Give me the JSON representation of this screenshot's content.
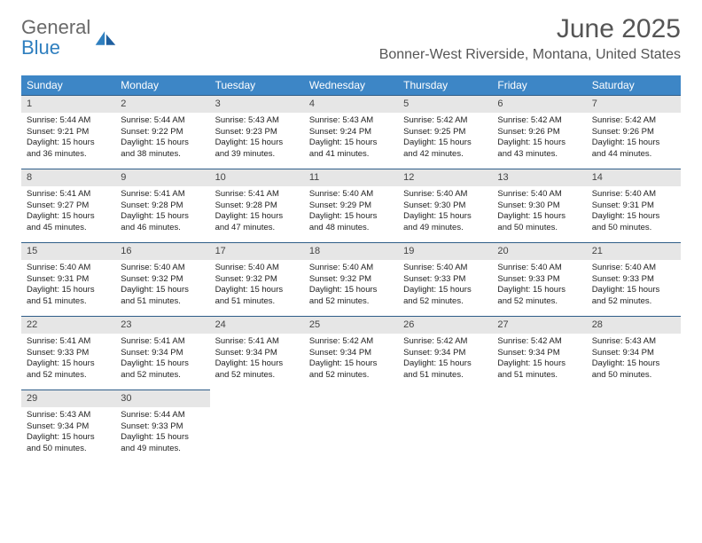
{
  "logo": {
    "text1": "General",
    "text2": "Blue"
  },
  "title": "June 2025",
  "location": "Bonner-West Riverside, Montana, United States",
  "day_headers": [
    "Sunday",
    "Monday",
    "Tuesday",
    "Wednesday",
    "Thursday",
    "Friday",
    "Saturday"
  ],
  "colors": {
    "header_bg": "#3d86c6",
    "header_text": "#ffffff",
    "row_border": "#2f5d88",
    "daynum_bg": "#e6e6e6",
    "logo_gray": "#696969",
    "logo_blue": "#2f7fbf"
  },
  "weeks": [
    [
      {
        "n": "1",
        "sr": "Sunrise: 5:44 AM",
        "ss": "Sunset: 9:21 PM",
        "d1": "Daylight: 15 hours",
        "d2": "and 36 minutes."
      },
      {
        "n": "2",
        "sr": "Sunrise: 5:44 AM",
        "ss": "Sunset: 9:22 PM",
        "d1": "Daylight: 15 hours",
        "d2": "and 38 minutes."
      },
      {
        "n": "3",
        "sr": "Sunrise: 5:43 AM",
        "ss": "Sunset: 9:23 PM",
        "d1": "Daylight: 15 hours",
        "d2": "and 39 minutes."
      },
      {
        "n": "4",
        "sr": "Sunrise: 5:43 AM",
        "ss": "Sunset: 9:24 PM",
        "d1": "Daylight: 15 hours",
        "d2": "and 41 minutes."
      },
      {
        "n": "5",
        "sr": "Sunrise: 5:42 AM",
        "ss": "Sunset: 9:25 PM",
        "d1": "Daylight: 15 hours",
        "d2": "and 42 minutes."
      },
      {
        "n": "6",
        "sr": "Sunrise: 5:42 AM",
        "ss": "Sunset: 9:26 PM",
        "d1": "Daylight: 15 hours",
        "d2": "and 43 minutes."
      },
      {
        "n": "7",
        "sr": "Sunrise: 5:42 AM",
        "ss": "Sunset: 9:26 PM",
        "d1": "Daylight: 15 hours",
        "d2": "and 44 minutes."
      }
    ],
    [
      {
        "n": "8",
        "sr": "Sunrise: 5:41 AM",
        "ss": "Sunset: 9:27 PM",
        "d1": "Daylight: 15 hours",
        "d2": "and 45 minutes."
      },
      {
        "n": "9",
        "sr": "Sunrise: 5:41 AM",
        "ss": "Sunset: 9:28 PM",
        "d1": "Daylight: 15 hours",
        "d2": "and 46 minutes."
      },
      {
        "n": "10",
        "sr": "Sunrise: 5:41 AM",
        "ss": "Sunset: 9:28 PM",
        "d1": "Daylight: 15 hours",
        "d2": "and 47 minutes."
      },
      {
        "n": "11",
        "sr": "Sunrise: 5:40 AM",
        "ss": "Sunset: 9:29 PM",
        "d1": "Daylight: 15 hours",
        "d2": "and 48 minutes."
      },
      {
        "n": "12",
        "sr": "Sunrise: 5:40 AM",
        "ss": "Sunset: 9:30 PM",
        "d1": "Daylight: 15 hours",
        "d2": "and 49 minutes."
      },
      {
        "n": "13",
        "sr": "Sunrise: 5:40 AM",
        "ss": "Sunset: 9:30 PM",
        "d1": "Daylight: 15 hours",
        "d2": "and 50 minutes."
      },
      {
        "n": "14",
        "sr": "Sunrise: 5:40 AM",
        "ss": "Sunset: 9:31 PM",
        "d1": "Daylight: 15 hours",
        "d2": "and 50 minutes."
      }
    ],
    [
      {
        "n": "15",
        "sr": "Sunrise: 5:40 AM",
        "ss": "Sunset: 9:31 PM",
        "d1": "Daylight: 15 hours",
        "d2": "and 51 minutes."
      },
      {
        "n": "16",
        "sr": "Sunrise: 5:40 AM",
        "ss": "Sunset: 9:32 PM",
        "d1": "Daylight: 15 hours",
        "d2": "and 51 minutes."
      },
      {
        "n": "17",
        "sr": "Sunrise: 5:40 AM",
        "ss": "Sunset: 9:32 PM",
        "d1": "Daylight: 15 hours",
        "d2": "and 51 minutes."
      },
      {
        "n": "18",
        "sr": "Sunrise: 5:40 AM",
        "ss": "Sunset: 9:32 PM",
        "d1": "Daylight: 15 hours",
        "d2": "and 52 minutes."
      },
      {
        "n": "19",
        "sr": "Sunrise: 5:40 AM",
        "ss": "Sunset: 9:33 PM",
        "d1": "Daylight: 15 hours",
        "d2": "and 52 minutes."
      },
      {
        "n": "20",
        "sr": "Sunrise: 5:40 AM",
        "ss": "Sunset: 9:33 PM",
        "d1": "Daylight: 15 hours",
        "d2": "and 52 minutes."
      },
      {
        "n": "21",
        "sr": "Sunrise: 5:40 AM",
        "ss": "Sunset: 9:33 PM",
        "d1": "Daylight: 15 hours",
        "d2": "and 52 minutes."
      }
    ],
    [
      {
        "n": "22",
        "sr": "Sunrise: 5:41 AM",
        "ss": "Sunset: 9:33 PM",
        "d1": "Daylight: 15 hours",
        "d2": "and 52 minutes."
      },
      {
        "n": "23",
        "sr": "Sunrise: 5:41 AM",
        "ss": "Sunset: 9:34 PM",
        "d1": "Daylight: 15 hours",
        "d2": "and 52 minutes."
      },
      {
        "n": "24",
        "sr": "Sunrise: 5:41 AM",
        "ss": "Sunset: 9:34 PM",
        "d1": "Daylight: 15 hours",
        "d2": "and 52 minutes."
      },
      {
        "n": "25",
        "sr": "Sunrise: 5:42 AM",
        "ss": "Sunset: 9:34 PM",
        "d1": "Daylight: 15 hours",
        "d2": "and 52 minutes."
      },
      {
        "n": "26",
        "sr": "Sunrise: 5:42 AM",
        "ss": "Sunset: 9:34 PM",
        "d1": "Daylight: 15 hours",
        "d2": "and 51 minutes."
      },
      {
        "n": "27",
        "sr": "Sunrise: 5:42 AM",
        "ss": "Sunset: 9:34 PM",
        "d1": "Daylight: 15 hours",
        "d2": "and 51 minutes."
      },
      {
        "n": "28",
        "sr": "Sunrise: 5:43 AM",
        "ss": "Sunset: 9:34 PM",
        "d1": "Daylight: 15 hours",
        "d2": "and 50 minutes."
      }
    ],
    [
      {
        "n": "29",
        "sr": "Sunrise: 5:43 AM",
        "ss": "Sunset: 9:34 PM",
        "d1": "Daylight: 15 hours",
        "d2": "and 50 minutes."
      },
      {
        "n": "30",
        "sr": "Sunrise: 5:44 AM",
        "ss": "Sunset: 9:33 PM",
        "d1": "Daylight: 15 hours",
        "d2": "and 49 minutes."
      },
      null,
      null,
      null,
      null,
      null
    ]
  ]
}
